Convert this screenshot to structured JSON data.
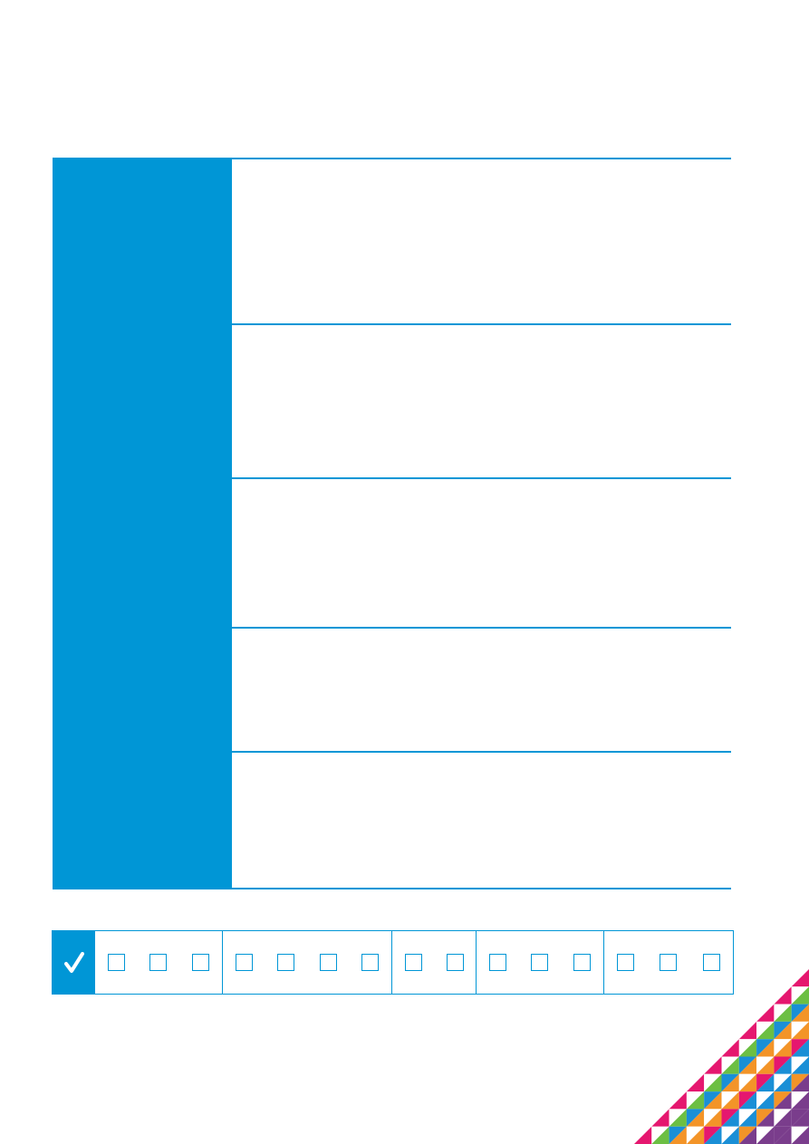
{
  "colors": {
    "accent": "#0096d6",
    "pattern": [
      "#e5176f",
      "#6cbf43",
      "#f39428",
      "#1a8fd6",
      "#7a3d8c"
    ]
  },
  "rows": [
    {
      "label": ""
    },
    {
      "label": ""
    },
    {
      "label": ""
    },
    {
      "label": ""
    },
    {
      "label": ""
    }
  ],
  "checkbox_strip": {
    "icon": "checkmark-icon",
    "groups": [
      {
        "boxes": [
          false,
          false,
          false
        ]
      },
      {
        "boxes": [
          false,
          false,
          false,
          false
        ]
      },
      {
        "boxes": [
          false,
          false
        ]
      },
      {
        "boxes": [
          false,
          false,
          false
        ]
      },
      {
        "boxes": [
          false,
          false,
          false
        ]
      }
    ]
  }
}
